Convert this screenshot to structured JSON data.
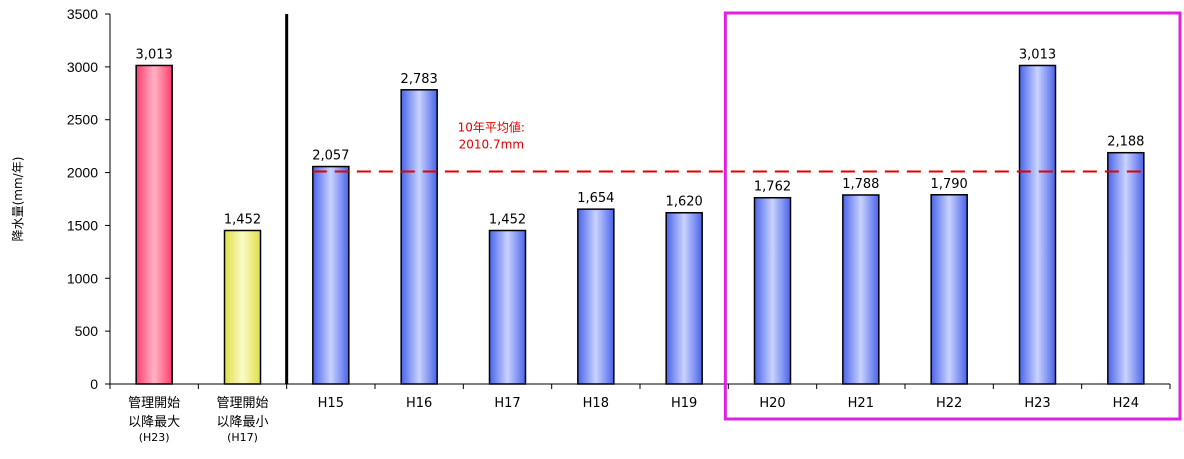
{
  "chart_data": {
    "type": "bar",
    "ylabel": "降水量(mm/年)",
    "ylim": [
      0,
      3500
    ],
    "yticks": [
      0,
      500,
      1000,
      1500,
      2000,
      2500,
      3000,
      3500
    ],
    "categories": [
      {
        "label_lines": [
          "管理開始",
          "以降最大"
        ],
        "sub": "(H23)",
        "value": 3013,
        "value_label": "3,013",
        "style": "max"
      },
      {
        "label_lines": [
          "管理開始",
          "以降最小"
        ],
        "sub": "(H17)",
        "value": 1452,
        "value_label": "1,452",
        "style": "min"
      },
      {
        "label_lines": [
          "H15"
        ],
        "sub": "",
        "value": 2057,
        "value_label": "2,057",
        "style": "year"
      },
      {
        "label_lines": [
          "H16"
        ],
        "sub": "",
        "value": 2783,
        "value_label": "2,783",
        "style": "year"
      },
      {
        "label_lines": [
          "H17"
        ],
        "sub": "",
        "value": 1452,
        "value_label": "1,452",
        "style": "year"
      },
      {
        "label_lines": [
          "H18"
        ],
        "sub": "",
        "value": 1654,
        "value_label": "1,654",
        "style": "year"
      },
      {
        "label_lines": [
          "H19"
        ],
        "sub": "",
        "value": 1620,
        "value_label": "1,620",
        "style": "year"
      },
      {
        "label_lines": [
          "H20"
        ],
        "sub": "",
        "value": 1762,
        "value_label": "1,762",
        "style": "year"
      },
      {
        "label_lines": [
          "H21"
        ],
        "sub": "",
        "value": 1788,
        "value_label": "1,788",
        "style": "year"
      },
      {
        "label_lines": [
          "H22"
        ],
        "sub": "",
        "value": 1790,
        "value_label": "1,790",
        "style": "year"
      },
      {
        "label_lines": [
          "H23"
        ],
        "sub": "",
        "value": 3013,
        "value_label": "3,013",
        "style": "year"
      },
      {
        "label_lines": [
          "H24"
        ],
        "sub": "",
        "value": 2188,
        "value_label": "2,188",
        "style": "year"
      }
    ],
    "average": {
      "value": 2010.7,
      "label_lines": [
        "10年平均値:",
        "2010.7mm"
      ],
      "color": "#e00000",
      "from_index": 2,
      "to_index": 11
    },
    "highlight": {
      "from_index": 7,
      "to_index": 11,
      "color": "#e020e0"
    },
    "colors": {
      "max": "#ff4f7b",
      "min": "#e6e65a",
      "year": "#4f6cf0"
    },
    "grid": false,
    "legend": "none"
  }
}
